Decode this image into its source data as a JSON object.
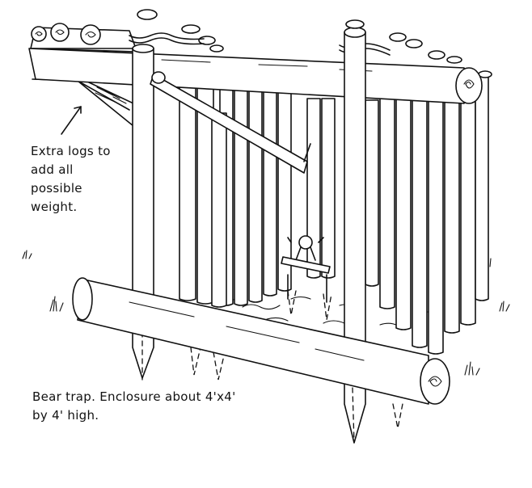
{
  "annotations": {
    "extra_logs": [
      "Extra logs to",
      "add all",
      "possible",
      "weight."
    ]
  },
  "caption": [
    "Bear trap. Enclosure about 4'x4'",
    "by 4' high."
  ]
}
